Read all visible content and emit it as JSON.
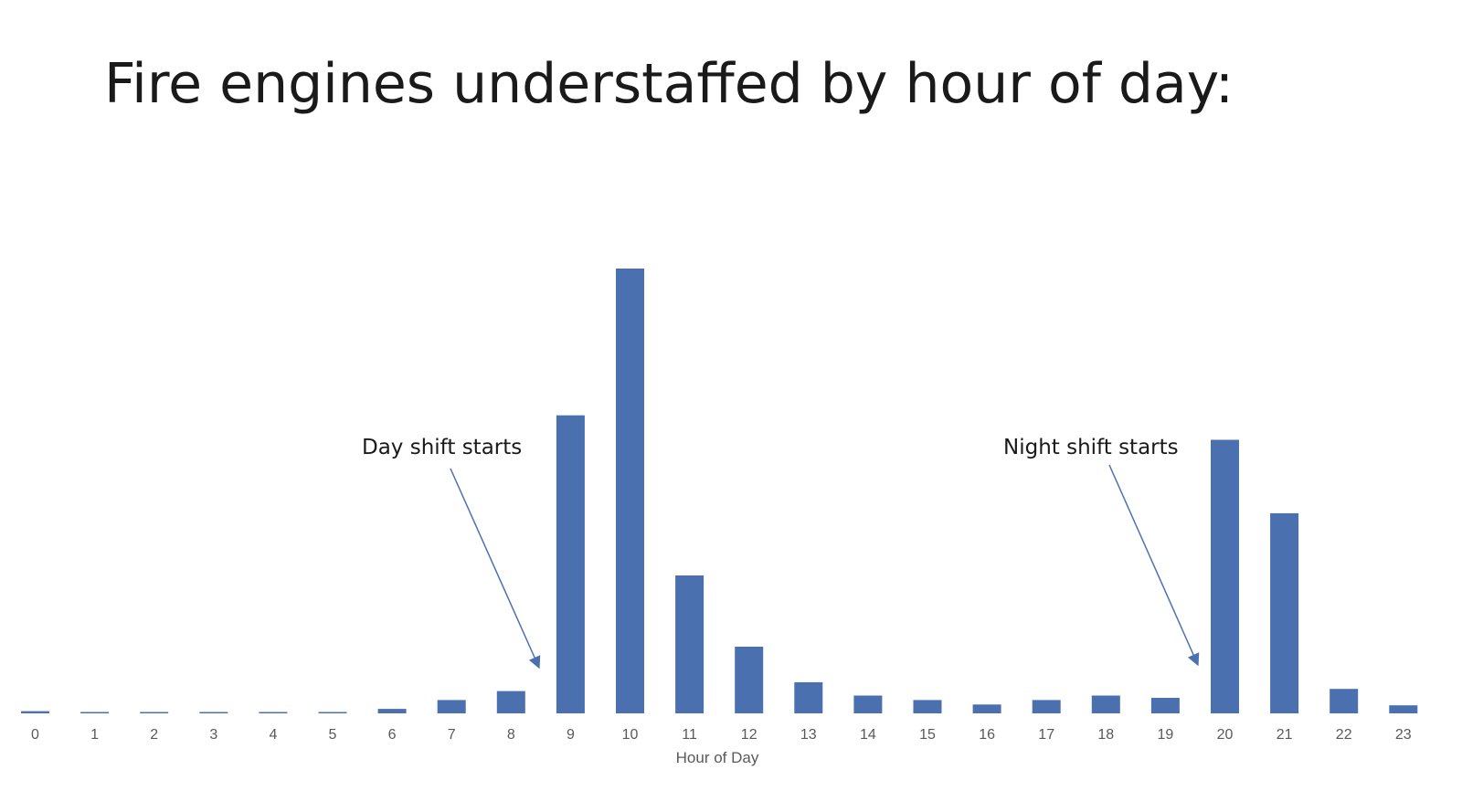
{
  "title": "Fire engines understaffed by hour of day:",
  "chart_data": {
    "type": "bar",
    "title": "Fire engines understaffed by hour of day:",
    "xlabel": "Hour of Day",
    "ylabel": "",
    "categories": [
      "0",
      "1",
      "2",
      "3",
      "4",
      "5",
      "6",
      "7",
      "8",
      "9",
      "10",
      "11",
      "12",
      "13",
      "14",
      "15",
      "16",
      "17",
      "18",
      "19",
      "20",
      "21",
      "22",
      "23"
    ],
    "values": [
      0.5,
      0.3,
      0.3,
      0.3,
      0.3,
      0.3,
      1,
      3,
      5,
      67,
      100,
      31,
      15,
      7,
      4,
      3,
      2,
      3,
      4,
      3.5,
      61.5,
      45,
      5.5,
      1.8
    ],
    "ylim": [
      0,
      100
    ],
    "y_axis_shown": false,
    "grid": false,
    "legend": "none",
    "bar_color": "#4a70b0",
    "annotations": [
      {
        "text": "Day shift starts",
        "points_to": "9"
      },
      {
        "text": "Night shift starts",
        "points_to": "20"
      }
    ]
  }
}
